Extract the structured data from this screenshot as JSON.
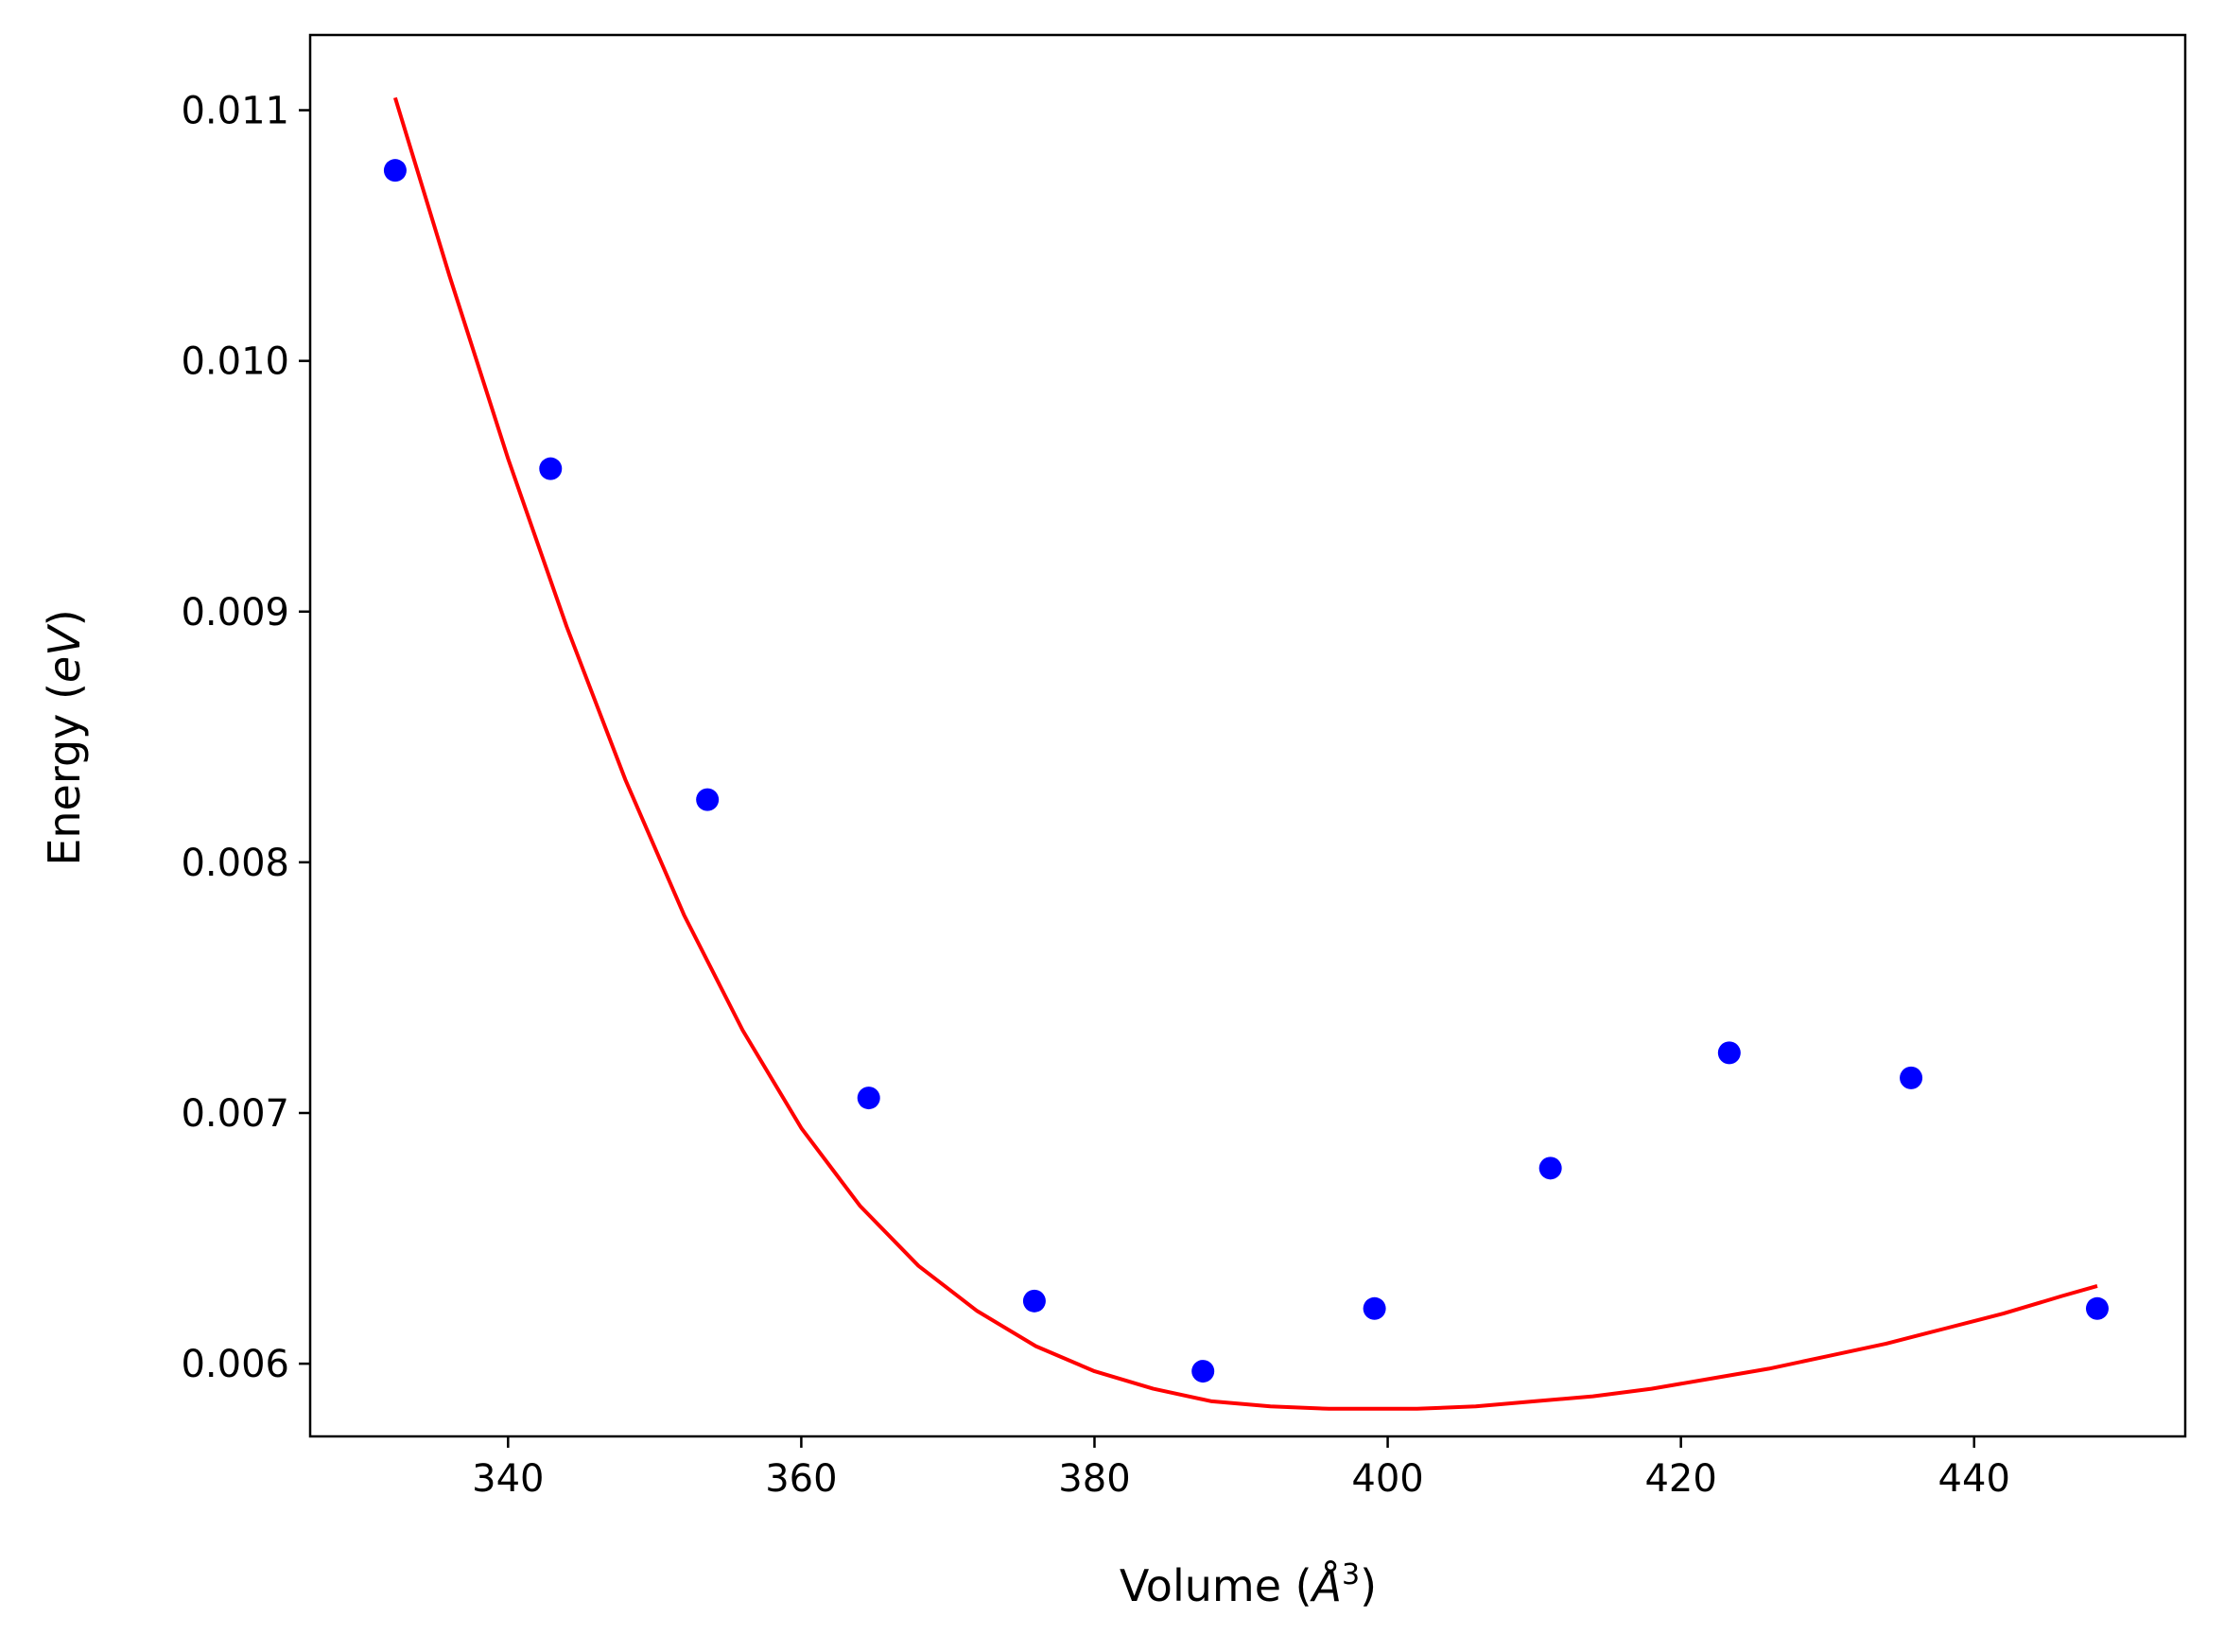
{
  "chart_data": {
    "type": "scatter",
    "title": "",
    "xlabel_text": "Volume (",
    "xlabel_unit": "Å",
    "xlabel_sup": "3",
    "xlabel_close": ")",
    "ylabel_text": "Energy (",
    "ylabel_unit": "eV",
    "ylabel_close": ")",
    "xlim": [
      326.5,
      454.4
    ],
    "ylim": [
      0.00571,
      0.0113
    ],
    "xticks": [
      340,
      360,
      380,
      400,
      420,
      440
    ],
    "xtick_labels": [
      "340",
      "360",
      "380",
      "400",
      "420",
      "440"
    ],
    "yticks": [
      0.006,
      0.007,
      0.008,
      0.009,
      0.01,
      0.011
    ],
    "ytick_labels": [
      "0.006",
      "0.007",
      "0.008",
      "0.009",
      "0.010",
      "0.011"
    ],
    "grid": false,
    "series": [
      {
        "kind": "points",
        "color": "#0000ff",
        "x": [
          332.3,
          342.9,
          353.6,
          364.6,
          375.9,
          387.4,
          399.1,
          411.1,
          423.3,
          435.7,
          448.4
        ],
        "y": [
          0.01076,
          0.00957,
          0.00825,
          0.00706,
          0.00625,
          0.00597,
          0.00622,
          0.00678,
          0.00724,
          0.00714,
          0.00622
        ]
      },
      {
        "kind": "fit-line",
        "color": "#ff0000",
        "x": [
          332.3,
          336.0,
          340.0,
          344.0,
          348.0,
          352.0,
          356.0,
          360.0,
          364.0,
          368.0,
          372.0,
          376.0,
          380.0,
          384.0,
          388.0,
          392.0,
          396.0,
          398.5,
          402.0,
          406.0,
          410.0,
          414.0,
          418.0,
          422.0,
          426.0,
          430.0,
          434.0,
          438.0,
          442.0,
          446.0,
          448.4
        ],
        "y": [
          0.01105,
          0.01034,
          0.00961,
          0.00894,
          0.00833,
          0.00779,
          0.00733,
          0.00694,
          0.00663,
          0.00639,
          0.00621,
          0.00607,
          0.00597,
          0.0059,
          0.00585,
          0.00583,
          0.00582,
          0.00582,
          0.00582,
          0.00583,
          0.00585,
          0.00587,
          0.0059,
          0.00594,
          0.00598,
          0.00603,
          0.00608,
          0.00614,
          0.0062,
          0.00627,
          0.00631
        ]
      }
    ]
  }
}
